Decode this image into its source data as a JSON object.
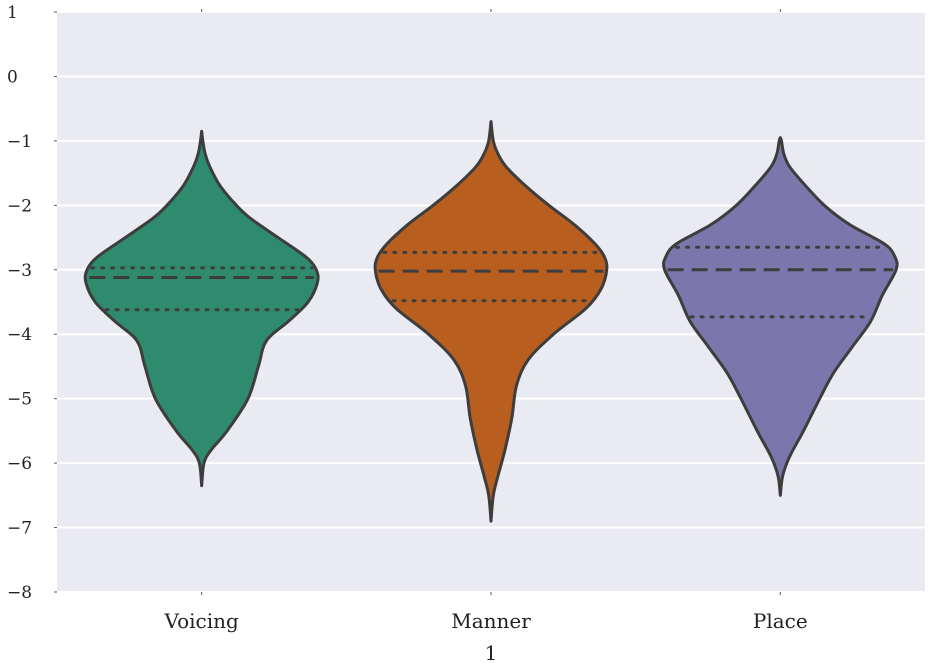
{
  "chart_data": {
    "type": "violin",
    "title": "",
    "xlabel": "1",
    "ylabel": "",
    "ylim": [
      -8,
      1
    ],
    "y_ticks": [
      "1",
      "0",
      "−1",
      "−2",
      "−3",
      "−4",
      "−5",
      "−6",
      "−7",
      "−8"
    ],
    "y_tick_values": [
      1,
      0,
      -1,
      -2,
      -3,
      -4,
      -5,
      -6,
      -7,
      -8
    ],
    "grid": true,
    "background": "#eaeaf2",
    "categories": [
      "Voicing",
      "Manner",
      "Place"
    ],
    "series": [
      {
        "category": "Voicing",
        "color": "#2e8b6e",
        "min": -6.35,
        "max": -0.85,
        "q1": -3.62,
        "median": -3.12,
        "q3": -2.97,
        "profile": [
          [
            -6.35,
            0.0
          ],
          [
            -6.0,
            0.02
          ],
          [
            -5.8,
            0.08
          ],
          [
            -5.5,
            0.22
          ],
          [
            -5.0,
            0.4
          ],
          [
            -4.5,
            0.49
          ],
          [
            -4.1,
            0.56
          ],
          [
            -3.8,
            0.75
          ],
          [
            -3.5,
            0.92
          ],
          [
            -3.2,
            1.0
          ],
          [
            -3.0,
            0.99
          ],
          [
            -2.8,
            0.9
          ],
          [
            -2.5,
            0.66
          ],
          [
            -2.2,
            0.42
          ],
          [
            -2.0,
            0.3
          ],
          [
            -1.7,
            0.16
          ],
          [
            -1.4,
            0.07
          ],
          [
            -1.2,
            0.03
          ],
          [
            -1.0,
            0.01
          ],
          [
            -0.85,
            0.0
          ]
        ]
      },
      {
        "category": "Manner",
        "color": "#b85f20",
        "min": -6.9,
        "max": -0.7,
        "q1": -3.48,
        "median": -3.02,
        "q3": -2.73,
        "profile": [
          [
            -6.9,
            0.0
          ],
          [
            -6.5,
            0.02
          ],
          [
            -6.2,
            0.06
          ],
          [
            -5.8,
            0.12
          ],
          [
            -5.3,
            0.18
          ],
          [
            -4.8,
            0.22
          ],
          [
            -4.4,
            0.32
          ],
          [
            -4.0,
            0.54
          ],
          [
            -3.6,
            0.82
          ],
          [
            -3.3,
            0.95
          ],
          [
            -3.0,
            1.0
          ],
          [
            -2.8,
            0.98
          ],
          [
            -2.6,
            0.9
          ],
          [
            -2.3,
            0.72
          ],
          [
            -2.0,
            0.5
          ],
          [
            -1.7,
            0.3
          ],
          [
            -1.4,
            0.13
          ],
          [
            -1.2,
            0.06
          ],
          [
            -1.0,
            0.02
          ],
          [
            -0.7,
            0.0
          ]
        ]
      },
      {
        "category": "Place",
        "color": "#7b77ad",
        "min": -6.5,
        "max": -0.95,
        "q1": -3.73,
        "median": -3.0,
        "q3": -2.65,
        "profile": [
          [
            -6.5,
            0.0
          ],
          [
            -6.2,
            0.02
          ],
          [
            -5.9,
            0.08
          ],
          [
            -5.5,
            0.2
          ],
          [
            -5.0,
            0.34
          ],
          [
            -4.6,
            0.46
          ],
          [
            -4.2,
            0.62
          ],
          [
            -3.8,
            0.78
          ],
          [
            -3.4,
            0.88
          ],
          [
            -3.0,
            1.0
          ],
          [
            -2.8,
            0.99
          ],
          [
            -2.6,
            0.9
          ],
          [
            -2.3,
            0.6
          ],
          [
            -2.0,
            0.38
          ],
          [
            -1.7,
            0.22
          ],
          [
            -1.4,
            0.08
          ],
          [
            -1.2,
            0.03
          ],
          [
            -1.0,
            0.01
          ],
          [
            -0.95,
            0.0
          ]
        ]
      }
    ]
  }
}
